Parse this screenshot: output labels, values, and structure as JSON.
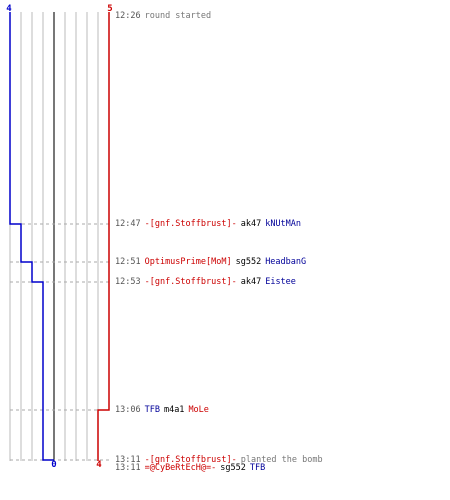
{
  "timeline": {
    "top_labels": {
      "left": "4",
      "right": "5"
    },
    "bottom_labels": {
      "mid": "0",
      "right": "4"
    },
    "colors": {
      "team_blue": "#0000cc",
      "team_red": "#cc0000",
      "grid": "#bbbbbb",
      "center": "#777777"
    },
    "events": [
      {
        "time": "12:26",
        "parts": [
          {
            "text": "round started",
            "style": "gray"
          }
        ]
      },
      {
        "time": "12:47",
        "parts": [
          {
            "text": "-[gnf.Stoffbrust]-",
            "style": "red"
          },
          {
            "text": "ak47",
            "style": "blk"
          },
          {
            "text": "kNUtMAn",
            "style": "blue"
          }
        ]
      },
      {
        "time": "12:51",
        "parts": [
          {
            "text": "OptimusPrime[MoM]",
            "style": "red"
          },
          {
            "text": "sg552",
            "style": "blk"
          },
          {
            "text": "HeadbanG",
            "style": "blue"
          }
        ]
      },
      {
        "time": "12:53",
        "parts": [
          {
            "text": "-[gnf.Stoffbrust]-",
            "style": "red"
          },
          {
            "text": "ak47",
            "style": "blk"
          },
          {
            "text": "Eistee",
            "style": "blue"
          }
        ]
      },
      {
        "time": "13:06",
        "parts": [
          {
            "text": "TFB",
            "style": "blue"
          },
          {
            "text": "m4a1",
            "style": "blk"
          },
          {
            "text": "MoLe",
            "style": "red"
          }
        ]
      },
      {
        "time": "13:11",
        "parts": [
          {
            "text": "-[gnf.Stoffbrust]-",
            "style": "red"
          },
          {
            "text": "planted the bomb",
            "style": "gray"
          }
        ]
      },
      {
        "time": "13:11",
        "parts": [
          {
            "text": "=@CyBeRtEcH@=-",
            "style": "red"
          },
          {
            "text": "sg552",
            "style": "blk"
          },
          {
            "text": "TFB",
            "style": "blue"
          }
        ]
      }
    ]
  }
}
